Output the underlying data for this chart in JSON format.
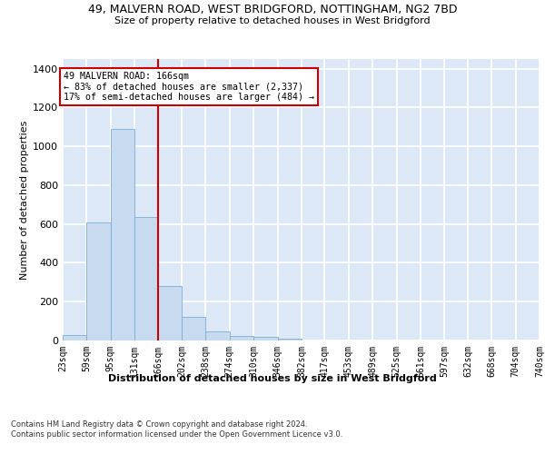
{
  "title_line1": "49, MALVERN ROAD, WEST BRIDGFORD, NOTTINGHAM, NG2 7BD",
  "title_line2": "Size of property relative to detached houses in West Bridgford",
  "xlabel": "Distribution of detached houses by size in West Bridgford",
  "ylabel": "Number of detached properties",
  "bin_edges": [
    23,
    59,
    95,
    131,
    166,
    202,
    238,
    274,
    310,
    346,
    382,
    417,
    453,
    489,
    525,
    561,
    597,
    632,
    668,
    704,
    740
  ],
  "bar_heights": [
    30,
    610,
    1090,
    635,
    280,
    120,
    45,
    25,
    20,
    10,
    0,
    0,
    0,
    0,
    0,
    0,
    0,
    0,
    0,
    0
  ],
  "bar_color": "#c8daf0",
  "bar_edge_color": "#7aadd4",
  "vline_x": 166,
  "vline_color": "#cc0000",
  "vline_linewidth": 1.5,
  "ylim": [
    0,
    1450
  ],
  "yticks": [
    0,
    200,
    400,
    600,
    800,
    1000,
    1200,
    1400
  ],
  "annotation_text": "49 MALVERN ROAD: 166sqm\n← 83% of detached houses are smaller (2,337)\n17% of semi-detached houses are larger (484) →",
  "annotation_box_facecolor": "#ffffff",
  "annotation_box_edgecolor": "#cc0000",
  "background_color": "#dce8f5",
  "grid_color": "#ffffff",
  "footnote_line1": "Contains HM Land Registry data © Crown copyright and database right 2024.",
  "footnote_line2": "Contains public sector information licensed under the Open Government Licence v3.0.",
  "tick_labels": [
    "23sqm",
    "59sqm",
    "95sqm",
    "131sqm",
    "166sqm",
    "202sqm",
    "238sqm",
    "274sqm",
    "310sqm",
    "346sqm",
    "382sqm",
    "417sqm",
    "453sqm",
    "489sqm",
    "525sqm",
    "561sqm",
    "597sqm",
    "632sqm",
    "668sqm",
    "704sqm",
    "740sqm"
  ]
}
